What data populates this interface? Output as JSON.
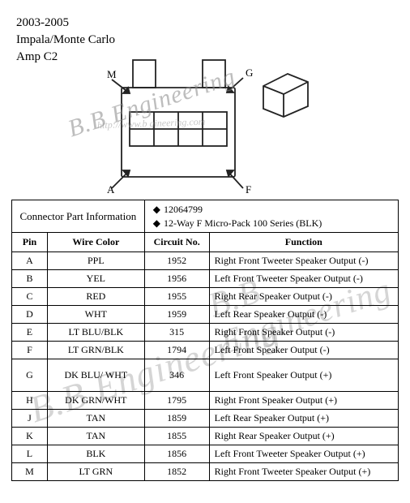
{
  "header": {
    "years": "2003-2005",
    "vehicle": "Impala/Monte Carlo",
    "amp": "Amp C2"
  },
  "watermark": {
    "text": "B.B Engineering",
    "url": "http://www.b   gineering.com"
  },
  "diagram": {
    "labels": {
      "tl": "M",
      "tr": "G",
      "bl": "A",
      "br": "F"
    },
    "outline_color": "#222222",
    "fill_color": "#ffffff"
  },
  "connector_info": {
    "title": "Connector Part Information",
    "pn": "12064799",
    "desc": "12-Way F Micro-Pack 100 Series (BLK)"
  },
  "columns": {
    "pin": "Pin",
    "wire": "Wire Color",
    "circuit": "Circuit No.",
    "function": "Function"
  },
  "rows": [
    {
      "pin": "A",
      "wire": "PPL",
      "circuit": "1952",
      "fn": "Right Front Tweeter Speaker Output (-)"
    },
    {
      "pin": "B",
      "wire": "YEL",
      "circuit": "1956",
      "fn": "Left Front Tweeter Speaker Output (-)"
    },
    {
      "pin": "C",
      "wire": "RED",
      "circuit": "1955",
      "fn": "Right Rear Speaker Output (-)"
    },
    {
      "pin": "D",
      "wire": "WHT",
      "circuit": "1959",
      "fn": "Left Rear Speaker Output (-)"
    },
    {
      "pin": "E",
      "wire": "LT BLU/BLK",
      "circuit": "315",
      "fn": "Right Front Speaker Output (-)"
    },
    {
      "pin": "F",
      "wire": "LT GRN/BLK",
      "circuit": "1794",
      "fn": "Left Front Speaker Output (-)"
    },
    {
      "pin": "G",
      "wire": "DK BLU/ WHT",
      "circuit": "346",
      "fn": "Left Front Speaker Output (+)",
      "tall": true
    },
    {
      "pin": "H",
      "wire": "DK GRN/WHT",
      "circuit": "1795",
      "fn": "Right Front Speaker Output (+)"
    },
    {
      "pin": "J",
      "wire": "TAN",
      "circuit": "1859",
      "fn": "Left Rear Speaker Output (+)"
    },
    {
      "pin": "K",
      "wire": "TAN",
      "circuit": "1855",
      "fn": "Right Rear Speaker Output (+)"
    },
    {
      "pin": "L",
      "wire": "BLK",
      "circuit": "1856",
      "fn": "Left Front Tweeter Speaker Output (+)"
    },
    {
      "pin": "M",
      "wire": "LT GRN",
      "circuit": "1852",
      "fn": "Right Front Tweeter Speaker Output (+)"
    }
  ]
}
